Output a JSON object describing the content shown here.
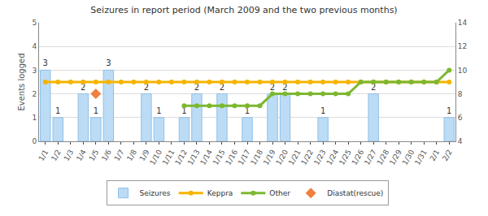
{
  "chart_data": {
    "type": "bar",
    "title": "Seizures in report period (March 2009 and the two previous months)",
    "y_label": "Events logged",
    "categories": [
      "1/1",
      "1/2",
      "1/3",
      "1/4",
      "1/5",
      "1/6",
      "1/7",
      "1/8",
      "1/9",
      "1/10",
      "1/11",
      "1/12",
      "1/13",
      "1/14",
      "1/15",
      "1/16",
      "1/17",
      "1/18",
      "1/19",
      "1/20",
      "1/21",
      "1/22",
      "1/23",
      "1/24",
      "1/25",
      "1/26",
      "1/27",
      "1/28",
      "1/29",
      "1/30",
      "1/31",
      "2/1",
      "2/2"
    ],
    "series": [
      {
        "name": "Seizures",
        "type": "bar",
        "color": "#bcdcf5",
        "data_labels": true,
        "values": [
          3,
          1,
          null,
          2,
          1,
          3,
          null,
          null,
          2,
          1,
          null,
          1,
          2,
          null,
          2,
          null,
          1,
          null,
          2,
          2,
          null,
          null,
          1,
          null,
          null,
          null,
          2,
          null,
          null,
          null,
          null,
          null,
          1
        ]
      },
      {
        "name": "Keppra",
        "type": "line",
        "color": "#f5b400",
        "marker": "circle",
        "axis": "y2",
        "values": [
          9,
          9,
          9,
          9,
          9,
          9,
          9,
          9,
          9,
          9,
          9,
          9,
          9,
          9,
          9,
          9,
          9,
          9,
          9,
          9,
          9,
          9,
          9,
          9,
          9,
          9,
          9,
          9,
          9,
          9,
          9,
          9,
          9
        ]
      },
      {
        "name": "Other",
        "type": "line",
        "color": "#7cb82f",
        "marker": "circle",
        "axis": "y2",
        "values": [
          null,
          null,
          null,
          null,
          null,
          null,
          null,
          null,
          null,
          null,
          null,
          7,
          7,
          7,
          7,
          7,
          7,
          7,
          8,
          8,
          8,
          8,
          8,
          8,
          8,
          9,
          9,
          9,
          9,
          9,
          9,
          9,
          10
        ]
      },
      {
        "name": "Diastat(rescue)",
        "type": "scatter",
        "color": "#f08040",
        "marker": "diamond",
        "axis": "y2",
        "values": [
          null,
          null,
          null,
          null,
          8,
          null,
          null,
          null,
          null,
          null,
          null,
          null,
          null,
          null,
          null,
          null,
          null,
          null,
          null,
          null,
          null,
          null,
          null,
          null,
          null,
          null,
          null,
          null,
          null,
          null,
          null,
          null,
          null
        ]
      }
    ],
    "ylim": [
      0,
      5
    ],
    "yticks": [
      0,
      1,
      2,
      3,
      4,
      5
    ],
    "y2lim": [
      4,
      14
    ],
    "y2ticks": [
      4,
      6,
      8,
      10,
      12,
      14
    ],
    "grid": true,
    "legend": "bottom"
  }
}
